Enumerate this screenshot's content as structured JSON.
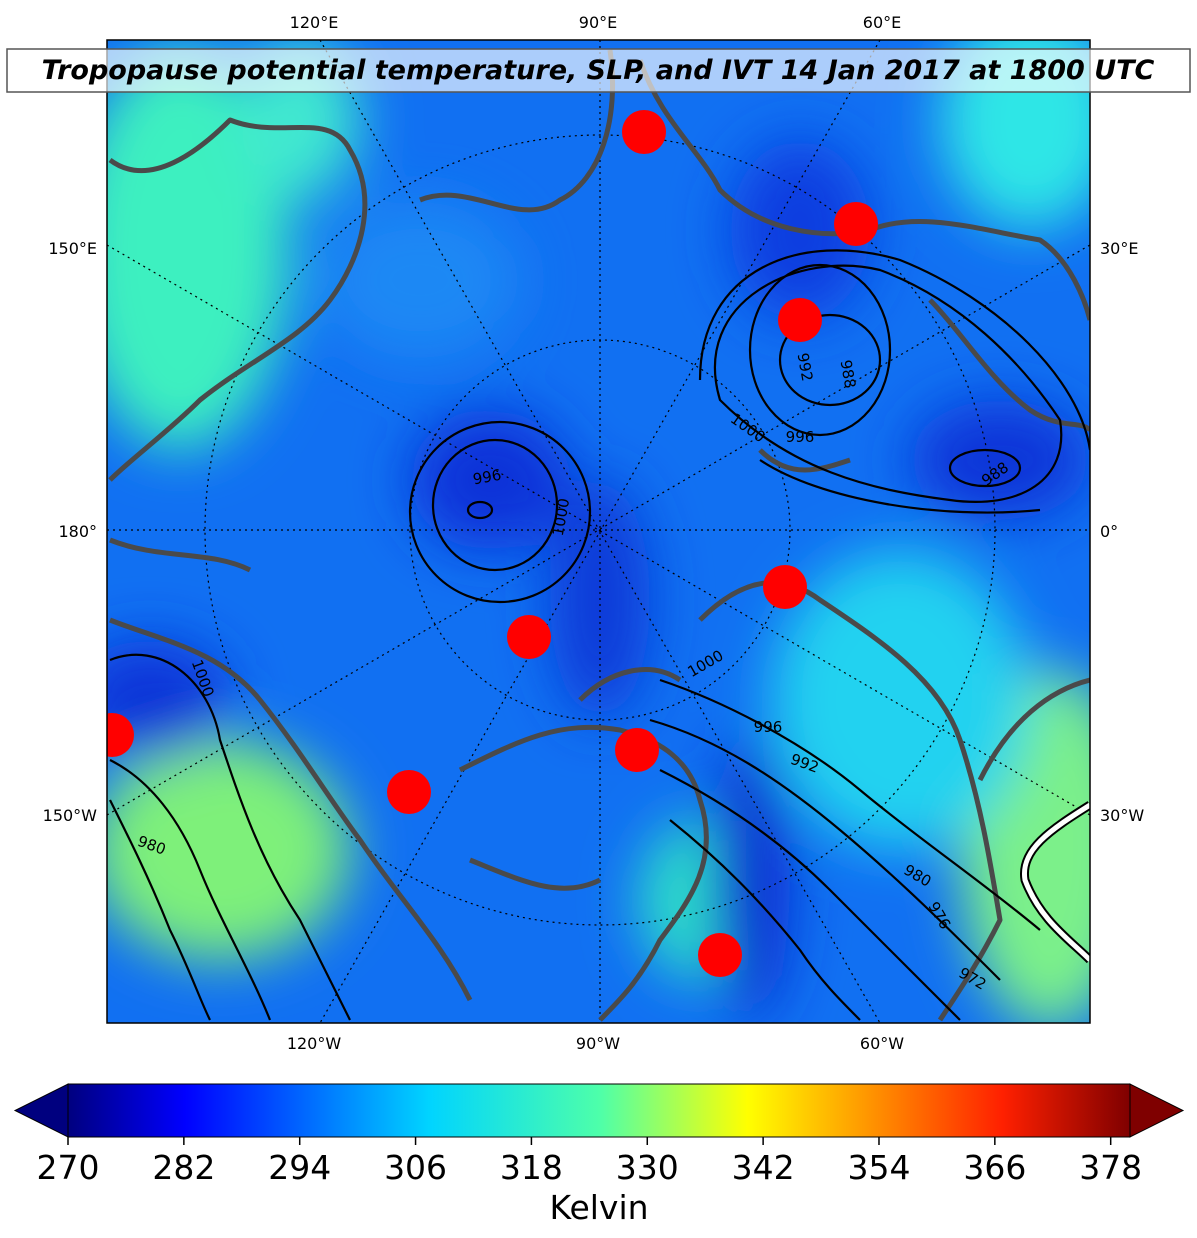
{
  "title": "Tropopause potential temperature, SLP, and IVT 14 Jan 2017 at 1800 UTC",
  "map": {
    "lon_labels_top": [
      "120°E",
      "90°E",
      "60°E"
    ],
    "lon_labels_bottom": [
      "120°W",
      "90°W",
      "60°W"
    ],
    "lat_labels_left": [
      "150°E",
      "180°",
      "150°W"
    ],
    "lat_labels_right": [
      "30°E",
      "0°",
      "30°W"
    ],
    "contour_labels": [
      992,
      988,
      1000,
      996,
      988,
      996,
      1000,
      1000,
      996,
      992,
      980,
      976,
      972,
      1000,
      980
    ]
  },
  "colorbar": {
    "label": "Kelvin",
    "colormap": "jet",
    "xlim": [
      270,
      380
    ],
    "xticks": [
      270,
      282,
      294,
      306,
      318,
      330,
      342,
      354,
      366,
      378
    ]
  }
}
